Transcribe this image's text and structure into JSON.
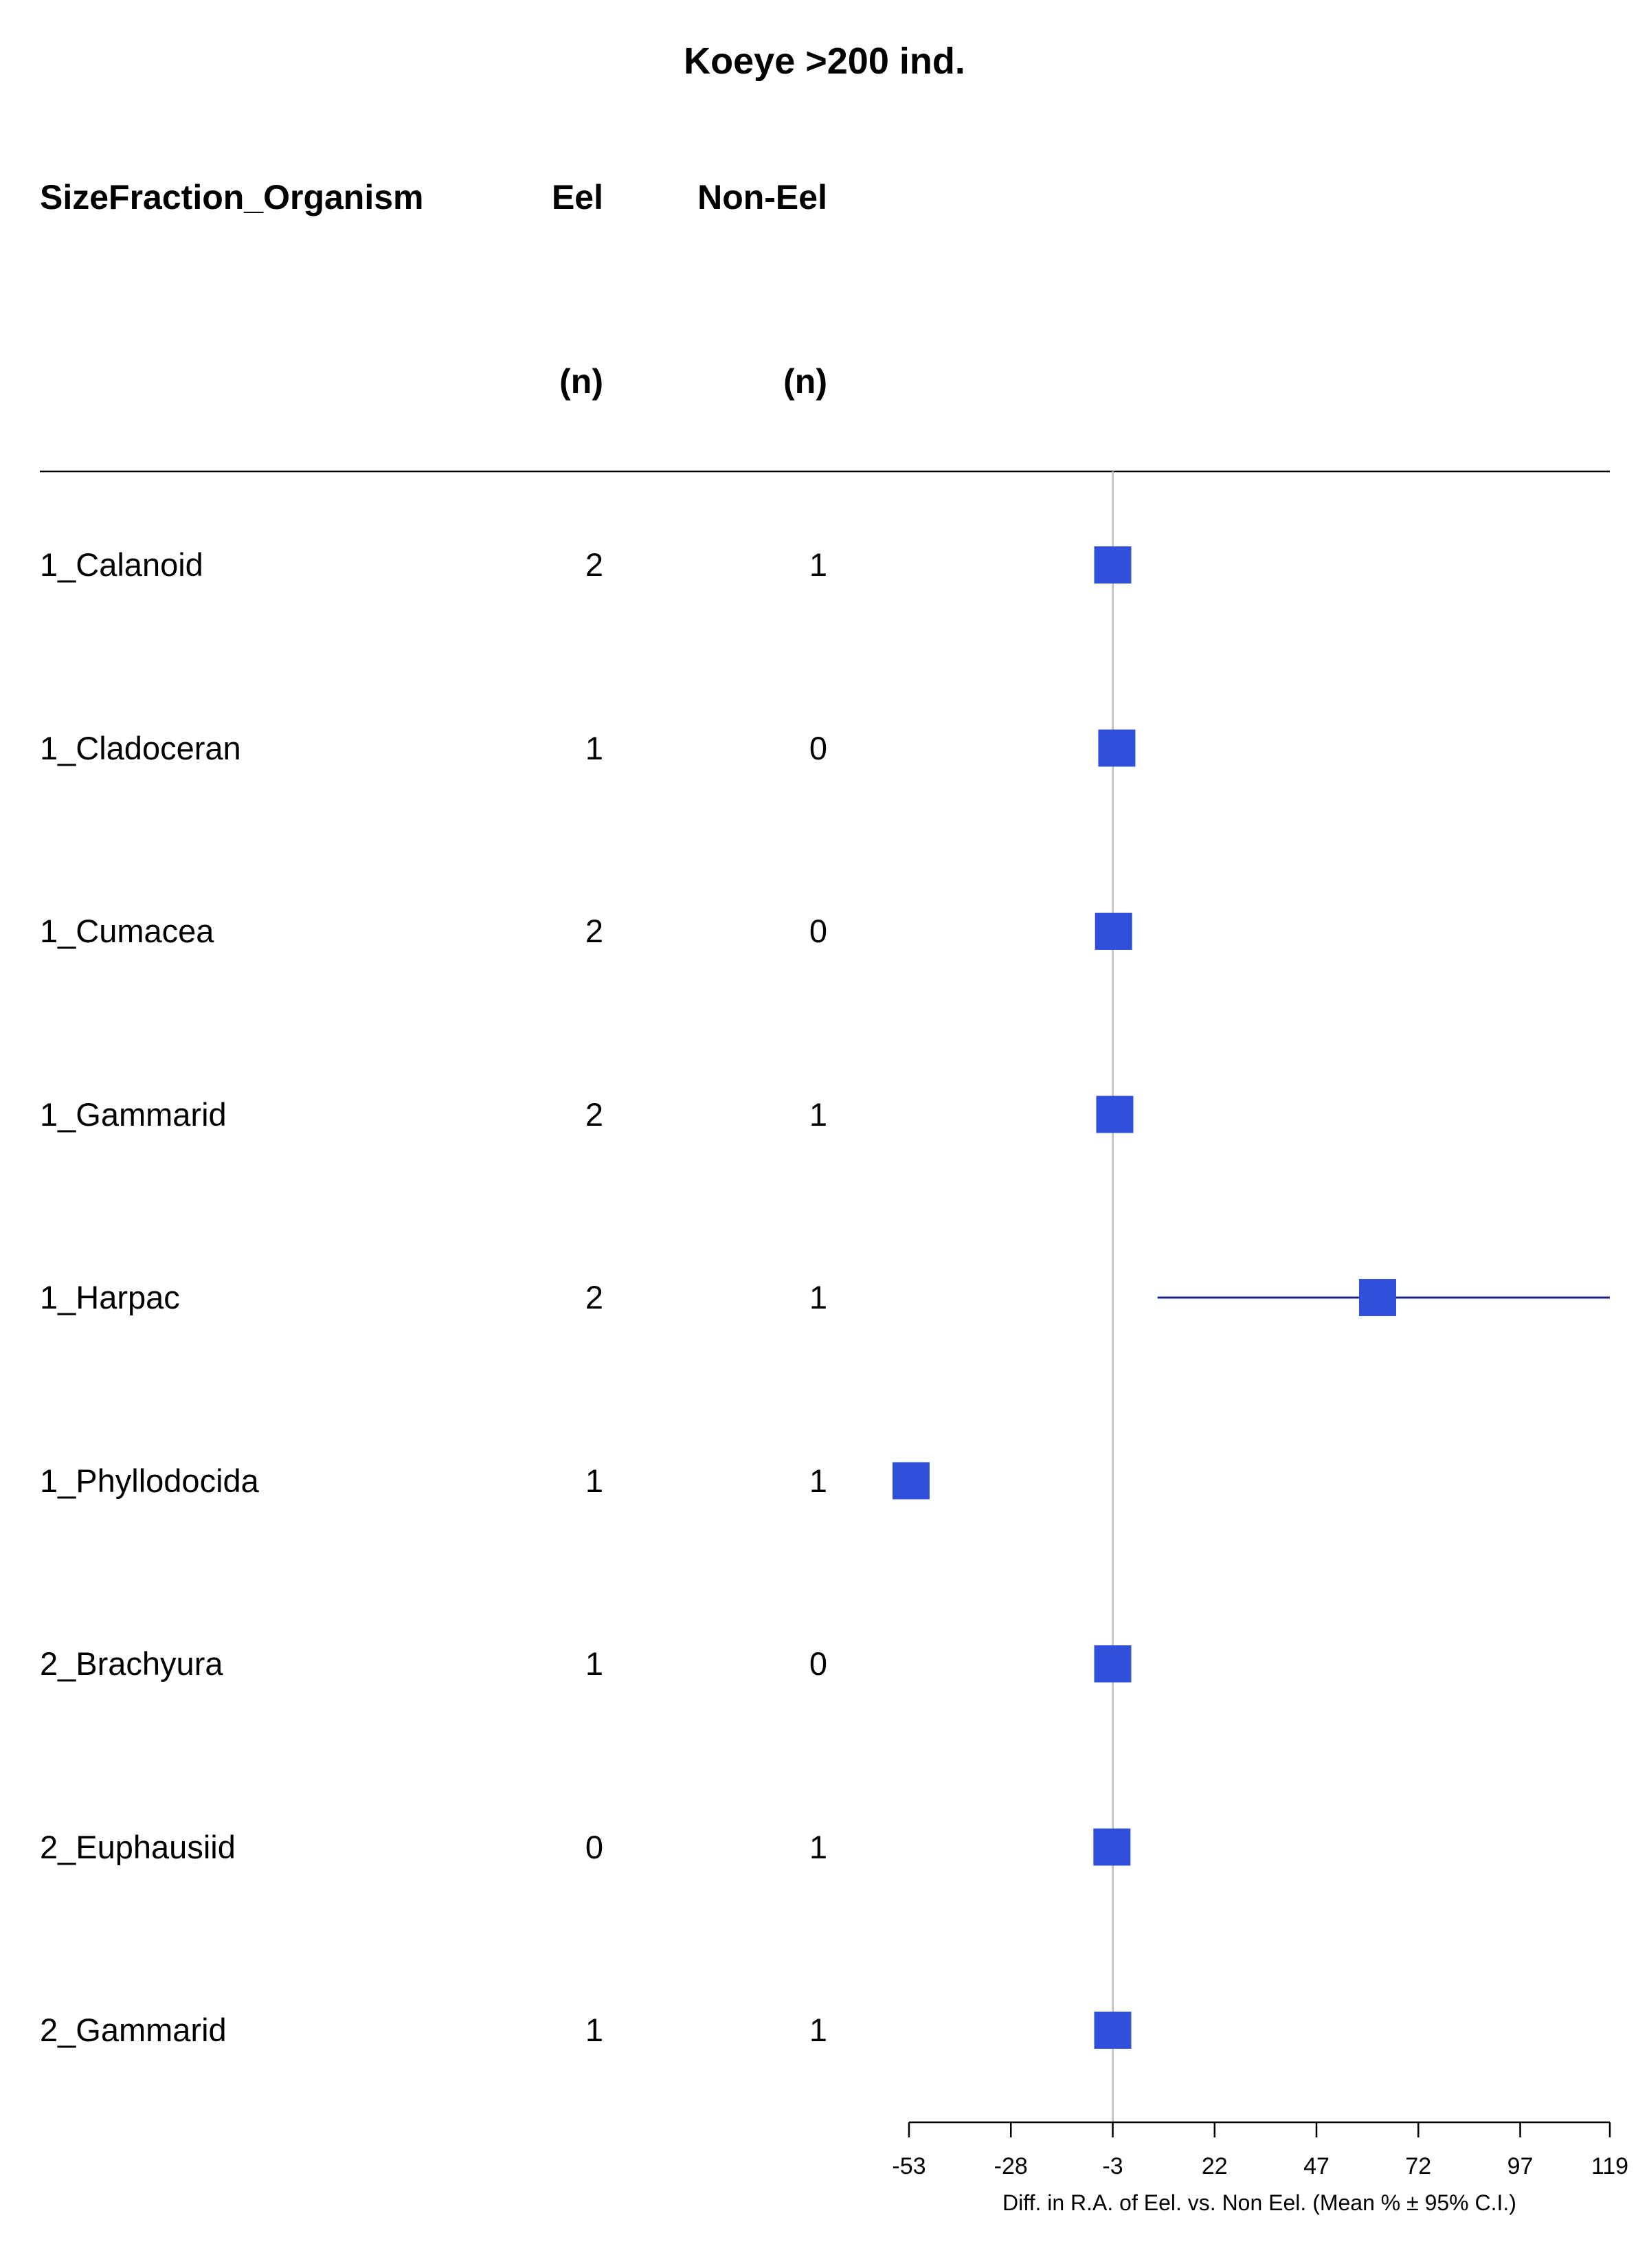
{
  "title": "Koeye >200 ind.",
  "headers": {
    "col1": "SizeFraction_Organism",
    "col2": "Eel",
    "col3": "Non-Eel",
    "col2_sub": "(n)",
    "col3_sub": "(n)"
  },
  "rows": [
    {
      "label": "1_Calanoid",
      "eel_n": "2",
      "non_eel_n": "1"
    },
    {
      "label": "1_Cladoceran",
      "eel_n": "1",
      "non_eel_n": "0"
    },
    {
      "label": "1_Cumacea",
      "eel_n": "2",
      "non_eel_n": "0"
    },
    {
      "label": "1_Gammarid",
      "eel_n": "2",
      "non_eel_n": "1"
    },
    {
      "label": "1_Harpac",
      "eel_n": "2",
      "non_eel_n": "1"
    },
    {
      "label": "1_Phyllodocida",
      "eel_n": "1",
      "non_eel_n": "1"
    },
    {
      "label": "2_Brachyura",
      "eel_n": "1",
      "non_eel_n": "0"
    },
    {
      "label": "2_Euphausiid",
      "eel_n": "0",
      "non_eel_n": "1"
    },
    {
      "label": "2_Gammarid",
      "eel_n": "1",
      "non_eel_n": "1"
    }
  ],
  "chart_data": {
    "type": "forest",
    "title": "Koeye >200 ind.",
    "xlabel": "Diff. in R.A. of Eel. vs. Non Eel. (Mean % ± 95% C.I.)",
    "xlim": [
      -53,
      119
    ],
    "xticks": [
      -53,
      -28,
      -3,
      22,
      47,
      72,
      97,
      119
    ],
    "reference_line": -3,
    "grid": false,
    "categories": [
      "1_Calanoid",
      "1_Cladoceran",
      "1_Cumacea",
      "1_Gammarid",
      "1_Harpac",
      "1_Phyllodocida",
      "2_Brachyura",
      "2_Euphausiid",
      "2_Gammarid"
    ],
    "mean": [
      -3,
      -2,
      -2.8,
      -2.5,
      62,
      -52.5,
      -3,
      -3.2,
      -3
    ],
    "ci_low": [
      null,
      null,
      null,
      null,
      8,
      null,
      null,
      null,
      null
    ],
    "ci_high": [
      null,
      null,
      null,
      null,
      119,
      null,
      null,
      null,
      null
    ],
    "colors": {
      "box": "#3050dc",
      "ci_line": "#1a237e",
      "ref_line": "#c8c8c8"
    }
  }
}
